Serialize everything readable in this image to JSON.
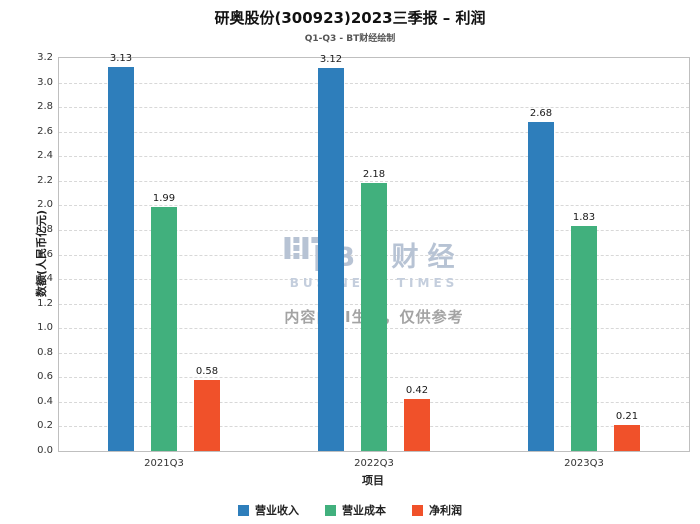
{
  "chart_data": {
    "type": "bar",
    "title": "研奥股份(300923)2023三季报 – 利润",
    "subtitle": "Q1-Q3 - BT财经绘制",
    "xlabel": "项目",
    "ylabel": "数额(人民币亿元)",
    "categories": [
      "2021Q3",
      "2022Q3",
      "2023Q3"
    ],
    "series": [
      {
        "name": "营业收入",
        "color": "#2e7ebb",
        "values": [
          3.13,
          3.12,
          2.68
        ]
      },
      {
        "name": "营业成本",
        "color": "#41b07d",
        "values": [
          1.99,
          2.18,
          1.83
        ]
      },
      {
        "name": "净利润",
        "color": "#f0512a",
        "values": [
          0.58,
          0.42,
          0.21
        ]
      }
    ],
    "ylim": [
      0,
      3.2
    ],
    "ytick_step": 0.2,
    "grid": "dashed-horizontal",
    "legend_position": "bottom"
  },
  "watermark": {
    "brand": "BT财经",
    "brand_sub": "BUSINESS TIMES",
    "disclaimer": "内容由AI生成，仅供参考"
  }
}
